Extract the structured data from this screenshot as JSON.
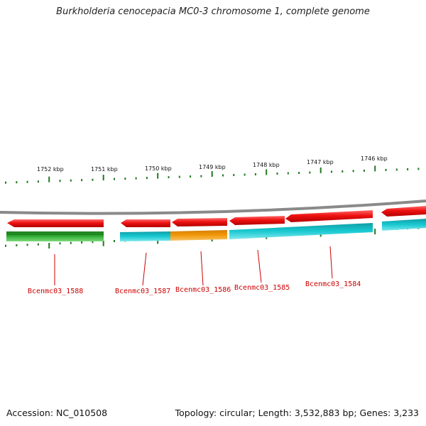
{
  "title": "Burkholderia cenocepacia MC0-3 chromosome 1, complete genome",
  "accession": "Accession: NC_010508",
  "summary": "Topology: circular; Length: 3,532,883 bp; Genes: 3,233",
  "scale_labels": [
    "1752 kbp",
    "1751 kbp",
    "1750 kbp",
    "1749 kbp",
    "1748 kbp",
    "1747 kbp",
    "1746 kbp"
  ],
  "gene_labels": [
    "Bcenmc03_1588",
    "Bcenmc03_1587",
    "Bcenmc03_1586",
    "Bcenmc03_1585",
    "Bcenmc03_1584"
  ],
  "colors": {
    "gene_arrow": "#ee1111",
    "cds_cyan": "#19c9d1",
    "cds_orange": "#f29a0c",
    "cds_green": "#2fae33",
    "tick": "#1f7a1f",
    "backbone": "#8a8a8a",
    "label": "#cc0000"
  }
}
